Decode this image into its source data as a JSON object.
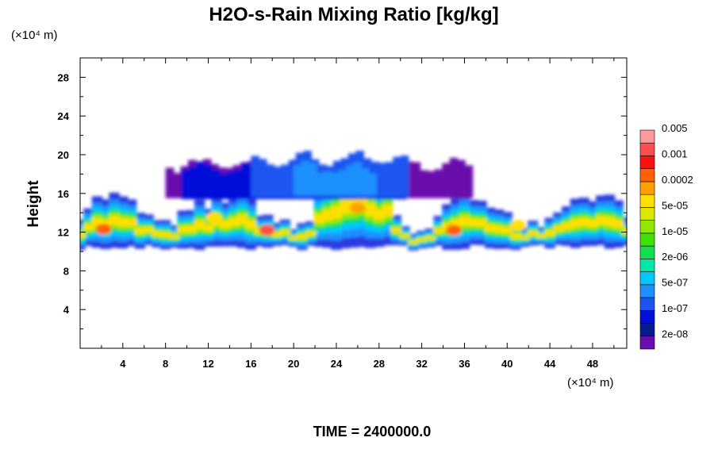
{
  "chart_data": {
    "type": "heatmap",
    "title": "H2O-s-Rain Mixing Ratio [kg/kg]",
    "ylabel": "Height",
    "y_unit_text": "(×10⁴ m)",
    "x_unit_text": "(×10⁴ m)",
    "footer": "TIME = 2400000.0",
    "xlim": [
      0,
      51.2
    ],
    "ylim": [
      0,
      30
    ],
    "x_ticks": [
      "4",
      "8",
      "12",
      "16",
      "20",
      "24",
      "28",
      "32",
      "36",
      "40",
      "44",
      "48"
    ],
    "y_ticks": [
      "4",
      "8",
      "12",
      "16",
      "20",
      "24",
      "28"
    ],
    "colorbar": {
      "colors": [
        "#6a0dad",
        "#0a1a8c",
        "#0010d8",
        "#1a55f0",
        "#1e90ff",
        "#00c8ff",
        "#00e8a8",
        "#10e050",
        "#40e000",
        "#90e800",
        "#d8e800",
        "#ffe000",
        "#ffa000",
        "#ff6000",
        "#ff1010",
        "#ff4d4d",
        "#ff9a9a"
      ],
      "labels": [
        "2e-08",
        "1e-07",
        "5e-07",
        "2e-06",
        "1e-05",
        "5e-05",
        "0.0002",
        "0.001",
        "0.005"
      ]
    },
    "field_description": {
      "main_layer_y": [
        11,
        15
      ],
      "anvil_top_y": 19.5,
      "anvil_x": [
        8,
        36
      ]
    }
  }
}
